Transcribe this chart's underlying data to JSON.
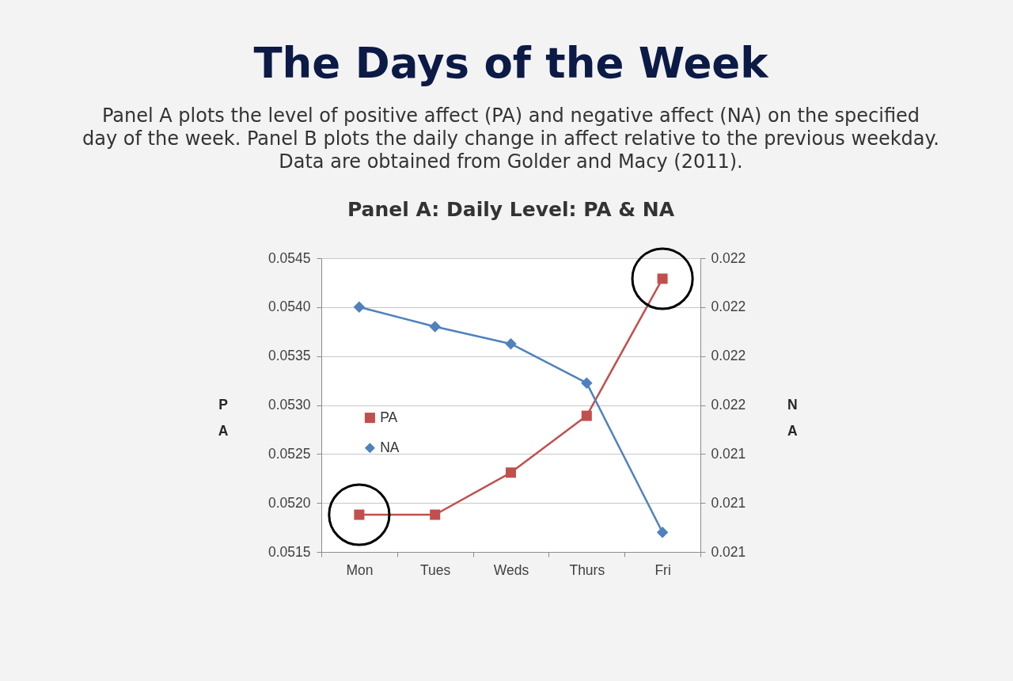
{
  "chart_data": {
    "type": "line",
    "title": "The Days of the Week",
    "subtitle": "Panel A plots the level of positive affect (PA) and negative affect (NA) on the specified day of the week. Panel B plots the daily change in affect relative to the previous weekday. Data are obtained from Golder and Macy (2011).",
    "annotations": [
      "Panel A: Daily Level: PA & NA"
    ],
    "categories": [
      "Mon",
      "Tues",
      "Weds",
      "Thurs",
      "Fri"
    ],
    "series": [
      {
        "name": "PA",
        "color": "#c0504d",
        "marker": "square",
        "values": [
          0.05188,
          0.05188,
          0.05231,
          0.05289,
          0.05429
        ]
      },
      {
        "name": "NA",
        "color": "#4f81bd",
        "marker": "diamond",
        "axis": "y2",
        "values": [
          0.022,
          0.02192,
          0.02185,
          0.02169,
          0.02108
        ]
      },
      {
        "type": "scatter",
        "color": "#000000",
        "marker": "circle",
        "values": [
          0.05188,
          null,
          null,
          null,
          0.05429
        ]
      }
    ],
    "ylabel": "PA",
    "y2label": "NA",
    "ylim": [
      0.0515,
      0.0545
    ],
    "yticks": [
      0.0515,
      {
        "value": 0.052,
        "label": "0.0520"
      },
      0.0525,
      {
        "value": 0.053,
        "label": "0.0530"
      },
      0.0535,
      {
        "value": 0.054,
        "label": "0.0540"
      },
      0.0545
    ],
    "y2lim": [
      0.021,
      0.0222
    ],
    "y2ticks": [
      0.021,
      {
        "value": 0.0212,
        "label": "0.021"
      },
      {
        "value": 0.0214,
        "label": "0.021"
      },
      {
        "value": 0.0216,
        "label": "0.022"
      },
      {
        "value": 0.0218,
        "label": "0.022"
      },
      0.022,
      {
        "value": 0.0222,
        "label": "0.022"
      }
    ],
    "grid": "y",
    "legend": "left"
  }
}
